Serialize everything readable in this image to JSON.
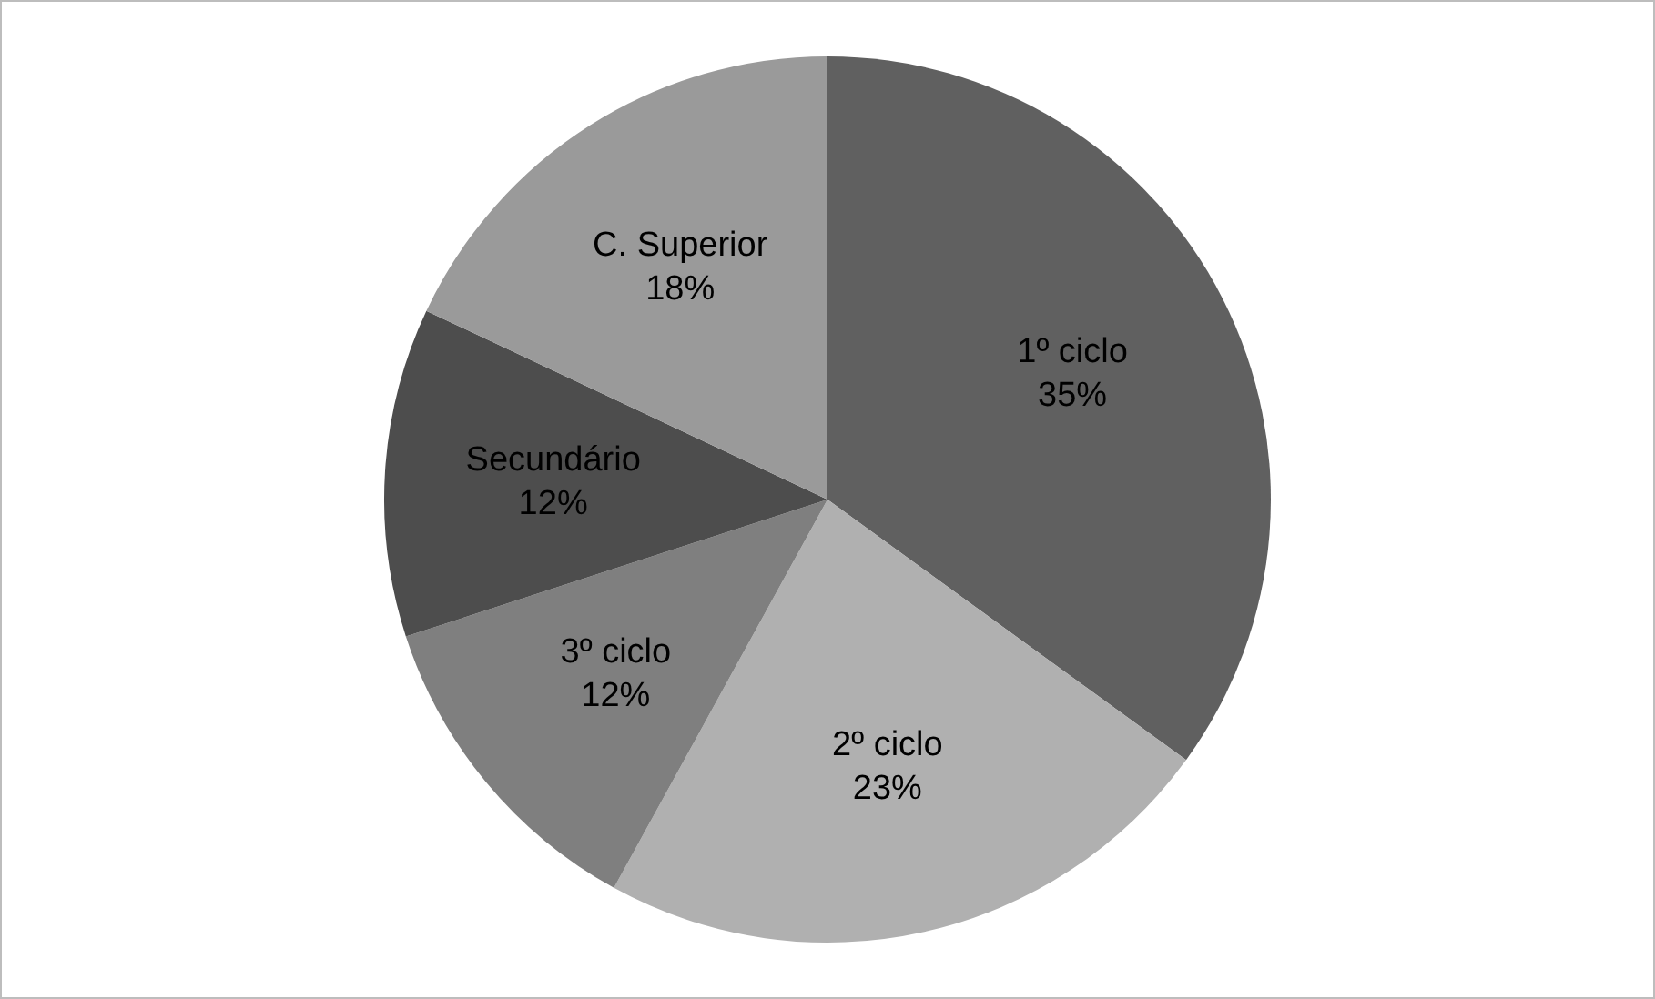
{
  "chart_data": {
    "type": "pie",
    "categories": [
      "1º ciclo",
      "2º ciclo",
      "3º ciclo",
      "Secundário",
      "C. Superior"
    ],
    "values": [
      35,
      23,
      12,
      12,
      18
    ],
    "value_labels": [
      "35%",
      "23%",
      "12%",
      "12%",
      "18%"
    ],
    "colors": [
      "#606060",
      "#b0b0b0",
      "#7f7f7f",
      "#4d4d4d",
      "#9a9a9a"
    ]
  }
}
